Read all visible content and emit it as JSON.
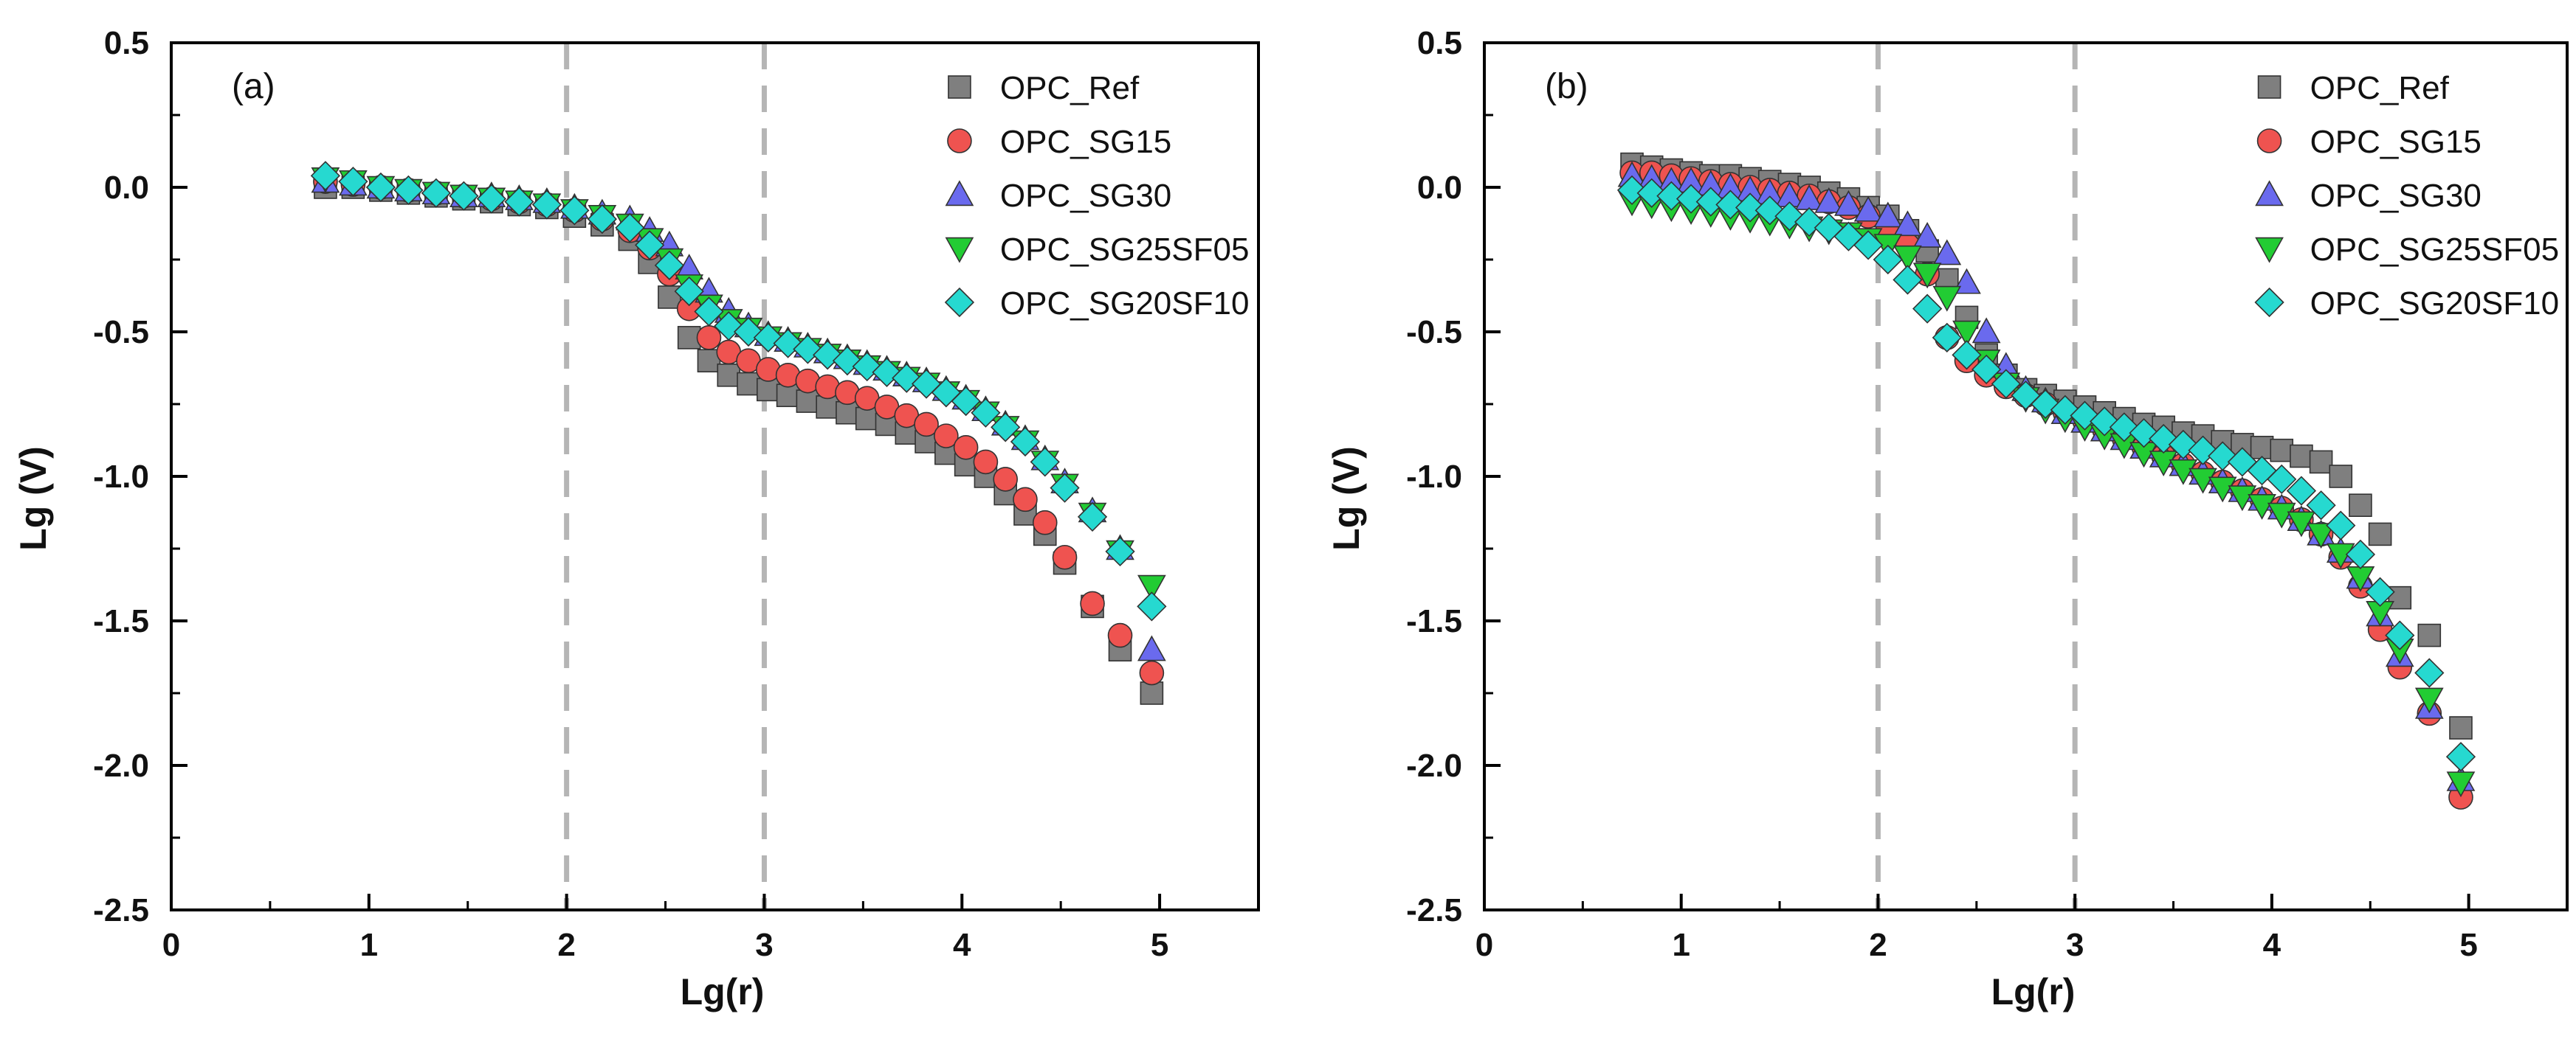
{
  "figure": {
    "panels": [
      "a",
      "b"
    ]
  },
  "chart_data": [
    {
      "type": "scatter",
      "panel_label": "(a)",
      "title": "",
      "xlabel": "Lg(r)",
      "ylabel": "Lg (V)",
      "xlim": [
        0,
        5.5
      ],
      "ylim": [
        -2.5,
        0.5
      ],
      "xticks": [
        0,
        1,
        2,
        3,
        4,
        5
      ],
      "xtick_labels": [
        "0",
        "1",
        "2",
        "3",
        "4",
        "5"
      ],
      "yticks": [
        0.5,
        0,
        -0.5,
        -1,
        -1.5,
        -2,
        -2.5
      ],
      "ytick_labels": [
        "0.5",
        "0.0",
        "-0.5",
        "-1.0",
        "-1.5",
        "-2.0",
        "-2.5"
      ],
      "vlines": [
        2,
        3
      ],
      "legend_position": "top-right",
      "series": [
        {
          "name": "OPC_Ref",
          "marker": "square",
          "color": "#7f7f7f",
          "x": [
            0.78,
            0.92,
            1.06,
            1.2,
            1.34,
            1.48,
            1.62,
            1.76,
            1.9,
            2.04,
            2.18,
            2.32,
            2.42,
            2.52,
            2.62,
            2.72,
            2.82,
            2.92,
            3.02,
            3.12,
            3.22,
            3.32,
            3.42,
            3.52,
            3.62,
            3.72,
            3.82,
            3.92,
            4.02,
            4.12,
            4.22,
            4.32,
            4.42,
            4.52,
            4.66,
            4.8,
            4.96
          ],
          "y": [
            0.0,
            0.0,
            -0.01,
            -0.02,
            -0.03,
            -0.04,
            -0.05,
            -0.06,
            -0.07,
            -0.1,
            -0.13,
            -0.18,
            -0.26,
            -0.38,
            -0.52,
            -0.6,
            -0.65,
            -0.68,
            -0.7,
            -0.72,
            -0.74,
            -0.76,
            -0.78,
            -0.8,
            -0.82,
            -0.85,
            -0.88,
            -0.92,
            -0.96,
            -1.0,
            -1.06,
            -1.13,
            -1.2,
            -1.3,
            -1.45,
            -1.6,
            -1.75
          ]
        },
        {
          "name": "OPC_SG15",
          "marker": "circle",
          "color": "#ef5350",
          "x": [
            0.78,
            0.92,
            1.06,
            1.2,
            1.34,
            1.48,
            1.62,
            1.76,
            1.9,
            2.04,
            2.18,
            2.32,
            2.42,
            2.52,
            2.62,
            2.72,
            2.82,
            2.92,
            3.02,
            3.12,
            3.22,
            3.32,
            3.42,
            3.52,
            3.62,
            3.72,
            3.82,
            3.92,
            4.02,
            4.12,
            4.22,
            4.32,
            4.42,
            4.52,
            4.66,
            4.8,
            4.96
          ],
          "y": [
            0.02,
            0.01,
            0.0,
            -0.01,
            -0.02,
            -0.03,
            -0.04,
            -0.05,
            -0.06,
            -0.08,
            -0.11,
            -0.15,
            -0.21,
            -0.3,
            -0.42,
            -0.52,
            -0.57,
            -0.6,
            -0.63,
            -0.65,
            -0.67,
            -0.69,
            -0.71,
            -0.73,
            -0.76,
            -0.79,
            -0.82,
            -0.86,
            -0.9,
            -0.95,
            -1.01,
            -1.08,
            -1.16,
            -1.28,
            -1.44,
            -1.55,
            -1.68
          ]
        },
        {
          "name": "OPC_SG30",
          "marker": "triangle-up",
          "color": "#6a6aee",
          "x": [
            0.78,
            0.92,
            1.06,
            1.2,
            1.34,
            1.48,
            1.62,
            1.76,
            1.9,
            2.04,
            2.18,
            2.32,
            2.42,
            2.52,
            2.62,
            2.72,
            2.82,
            2.92,
            3.02,
            3.12,
            3.22,
            3.32,
            3.42,
            3.52,
            3.62,
            3.72,
            3.82,
            3.92,
            4.02,
            4.12,
            4.22,
            4.32,
            4.42,
            4.52,
            4.66,
            4.8,
            4.96
          ],
          "y": [
            0.02,
            0.01,
            0.0,
            -0.01,
            -0.02,
            -0.03,
            -0.03,
            -0.04,
            -0.05,
            -0.07,
            -0.09,
            -0.11,
            -0.15,
            -0.2,
            -0.28,
            -0.36,
            -0.43,
            -0.48,
            -0.51,
            -0.53,
            -0.55,
            -0.57,
            -0.59,
            -0.61,
            -0.63,
            -0.65,
            -0.67,
            -0.7,
            -0.73,
            -0.77,
            -0.82,
            -0.87,
            -0.94,
            -1.02,
            -1.12,
            -1.25,
            -1.6
          ]
        },
        {
          "name": "OPC_SG25SF05",
          "marker": "triangle-down",
          "color": "#22cc33",
          "x": [
            0.78,
            0.92,
            1.06,
            1.2,
            1.34,
            1.48,
            1.62,
            1.76,
            1.9,
            2.04,
            2.18,
            2.32,
            2.42,
            2.52,
            2.62,
            2.72,
            2.82,
            2.92,
            3.02,
            3.12,
            3.22,
            3.32,
            3.42,
            3.52,
            3.62,
            3.72,
            3.82,
            3.92,
            4.02,
            4.12,
            4.22,
            4.32,
            4.42,
            4.52,
            4.66,
            4.8,
            4.96
          ],
          "y": [
            0.03,
            0.02,
            0.0,
            -0.01,
            -0.02,
            -0.03,
            -0.04,
            -0.05,
            -0.06,
            -0.08,
            -0.1,
            -0.13,
            -0.18,
            -0.25,
            -0.34,
            -0.41,
            -0.46,
            -0.49,
            -0.52,
            -0.54,
            -0.56,
            -0.58,
            -0.6,
            -0.62,
            -0.64,
            -0.66,
            -0.68,
            -0.71,
            -0.74,
            -0.78,
            -0.83,
            -0.88,
            -0.95,
            -1.03,
            -1.13,
            -1.26,
            -1.38
          ]
        },
        {
          "name": "OPC_SG20SF10",
          "marker": "diamond",
          "color": "#26d9d0",
          "x": [
            0.78,
            0.92,
            1.06,
            1.2,
            1.34,
            1.48,
            1.62,
            1.76,
            1.9,
            2.04,
            2.18,
            2.32,
            2.42,
            2.52,
            2.62,
            2.72,
            2.82,
            2.92,
            3.02,
            3.12,
            3.22,
            3.32,
            3.42,
            3.52,
            3.62,
            3.72,
            3.82,
            3.92,
            4.02,
            4.12,
            4.22,
            4.32,
            4.42,
            4.52,
            4.66,
            4.8,
            4.96
          ],
          "y": [
            0.04,
            0.02,
            0.0,
            -0.01,
            -0.02,
            -0.03,
            -0.04,
            -0.05,
            -0.06,
            -0.08,
            -0.11,
            -0.14,
            -0.2,
            -0.27,
            -0.36,
            -0.43,
            -0.48,
            -0.5,
            -0.52,
            -0.54,
            -0.56,
            -0.58,
            -0.6,
            -0.62,
            -0.64,
            -0.66,
            -0.68,
            -0.71,
            -0.74,
            -0.78,
            -0.83,
            -0.88,
            -0.95,
            -1.04,
            -1.14,
            -1.26,
            -1.45
          ]
        }
      ]
    },
    {
      "type": "scatter",
      "panel_label": "(b)",
      "title": "",
      "xlabel": "Lg(r)",
      "ylabel": "Lg (V)",
      "xlim": [
        0,
        5.5
      ],
      "ylim": [
        -2.5,
        0.5
      ],
      "xticks": [
        0,
        1,
        2,
        3,
        4,
        5
      ],
      "xtick_labels": [
        "0",
        "1",
        "2",
        "3",
        "4",
        "5"
      ],
      "yticks": [
        0.5,
        0,
        -0.5,
        -1,
        -1.5,
        -2,
        -2.5
      ],
      "ytick_labels": [
        "0.5",
        "0.0",
        "-0.5",
        "-1.0",
        "-1.5",
        "-2.0",
        "-2.5"
      ],
      "vlines": [
        2,
        3
      ],
      "legend_position": "top-right",
      "series": [
        {
          "name": "OPC_Ref",
          "marker": "square",
          "color": "#7f7f7f",
          "x": [
            0.75,
            0.85,
            0.95,
            1.05,
            1.15,
            1.25,
            1.35,
            1.45,
            1.55,
            1.65,
            1.75,
            1.85,
            1.95,
            2.05,
            2.15,
            2.25,
            2.35,
            2.45,
            2.55,
            2.65,
            2.75,
            2.85,
            2.95,
            3.05,
            3.15,
            3.25,
            3.35,
            3.45,
            3.55,
            3.65,
            3.75,
            3.85,
            3.95,
            4.05,
            4.15,
            4.25,
            4.35,
            4.45,
            4.55,
            4.65,
            4.8,
            4.96
          ],
          "y": [
            0.08,
            0.07,
            0.06,
            0.05,
            0.04,
            0.04,
            0.03,
            0.02,
            0.01,
            0.0,
            -0.02,
            -0.04,
            -0.07,
            -0.1,
            -0.15,
            -0.22,
            -0.32,
            -0.45,
            -0.58,
            -0.65,
            -0.7,
            -0.72,
            -0.74,
            -0.76,
            -0.78,
            -0.8,
            -0.82,
            -0.83,
            -0.85,
            -0.86,
            -0.88,
            -0.89,
            -0.9,
            -0.91,
            -0.93,
            -0.95,
            -1.0,
            -1.1,
            -1.2,
            -1.42,
            -1.55,
            -1.87
          ]
        },
        {
          "name": "OPC_SG15",
          "marker": "circle",
          "color": "#ef5350",
          "x": [
            0.75,
            0.85,
            0.95,
            1.05,
            1.15,
            1.25,
            1.35,
            1.45,
            1.55,
            1.65,
            1.75,
            1.85,
            1.95,
            2.05,
            2.15,
            2.25,
            2.35,
            2.45,
            2.55,
            2.65,
            2.75,
            2.85,
            2.95,
            3.05,
            3.15,
            3.25,
            3.35,
            3.45,
            3.55,
            3.65,
            3.75,
            3.85,
            3.95,
            4.05,
            4.15,
            4.25,
            4.35,
            4.45,
            4.55,
            4.65,
            4.8,
            4.96
          ],
          "y": [
            0.05,
            0.05,
            0.04,
            0.03,
            0.02,
            0.01,
            0.0,
            -0.01,
            -0.02,
            -0.03,
            -0.05,
            -0.07,
            -0.1,
            -0.14,
            -0.2,
            -0.3,
            -0.52,
            -0.6,
            -0.65,
            -0.69,
            -0.72,
            -0.75,
            -0.78,
            -0.81,
            -0.84,
            -0.87,
            -0.9,
            -0.93,
            -0.96,
            -0.99,
            -1.02,
            -1.05,
            -1.08,
            -1.11,
            -1.15,
            -1.2,
            -1.28,
            -1.38,
            -1.53,
            -1.66,
            -1.82,
            -2.11
          ]
        },
        {
          "name": "OPC_SG30",
          "marker": "triangle-up",
          "color": "#6a6aee",
          "x": [
            0.75,
            0.85,
            0.95,
            1.05,
            1.15,
            1.25,
            1.35,
            1.45,
            1.55,
            1.65,
            1.75,
            1.85,
            1.95,
            2.05,
            2.15,
            2.25,
            2.35,
            2.45,
            2.55,
            2.65,
            2.75,
            2.85,
            2.95,
            3.05,
            3.15,
            3.25,
            3.35,
            3.45,
            3.55,
            3.65,
            3.75,
            3.85,
            3.95,
            4.05,
            4.15,
            4.25,
            4.35,
            4.45,
            4.55,
            4.65,
            4.8,
            4.96
          ],
          "y": [
            0.04,
            0.03,
            0.02,
            0.02,
            0.01,
            0.0,
            -0.01,
            -0.02,
            -0.03,
            -0.04,
            -0.05,
            -0.06,
            -0.08,
            -0.1,
            -0.13,
            -0.17,
            -0.23,
            -0.33,
            -0.5,
            -0.62,
            -0.7,
            -0.74,
            -0.78,
            -0.81,
            -0.84,
            -0.87,
            -0.9,
            -0.93,
            -0.96,
            -0.99,
            -1.02,
            -1.05,
            -1.08,
            -1.11,
            -1.15,
            -1.2,
            -1.26,
            -1.35,
            -1.48,
            -1.62,
            -1.8,
            -2.05
          ]
        },
        {
          "name": "OPC_SG25SF05",
          "marker": "triangle-down",
          "color": "#22cc33",
          "x": [
            0.75,
            0.85,
            0.95,
            1.05,
            1.15,
            1.25,
            1.35,
            1.45,
            1.55,
            1.65,
            1.75,
            1.85,
            1.95,
            2.05,
            2.15,
            2.25,
            2.35,
            2.45,
            2.55,
            2.65,
            2.75,
            2.85,
            2.95,
            3.05,
            3.15,
            3.25,
            3.35,
            3.45,
            3.55,
            3.65,
            3.75,
            3.85,
            3.95,
            4.05,
            4.15,
            4.25,
            4.35,
            4.45,
            4.55,
            4.65,
            4.8,
            4.96
          ],
          "y": [
            -0.05,
            -0.06,
            -0.07,
            -0.08,
            -0.09,
            -0.1,
            -0.11,
            -0.12,
            -0.13,
            -0.14,
            -0.15,
            -0.16,
            -0.18,
            -0.2,
            -0.24,
            -0.3,
            -0.38,
            -0.5,
            -0.6,
            -0.68,
            -0.73,
            -0.77,
            -0.8,
            -0.83,
            -0.86,
            -0.89,
            -0.92,
            -0.95,
            -0.98,
            -1.01,
            -1.04,
            -1.07,
            -1.1,
            -1.13,
            -1.16,
            -1.2,
            -1.27,
            -1.35,
            -1.47,
            -1.6,
            -1.77,
            -2.06
          ]
        },
        {
          "name": "OPC_SG20SF10",
          "marker": "diamond",
          "color": "#26d9d0",
          "x": [
            0.75,
            0.85,
            0.95,
            1.05,
            1.15,
            1.25,
            1.35,
            1.45,
            1.55,
            1.65,
            1.75,
            1.85,
            1.95,
            2.05,
            2.15,
            2.25,
            2.35,
            2.45,
            2.55,
            2.65,
            2.75,
            2.85,
            2.95,
            3.05,
            3.15,
            3.25,
            3.35,
            3.45,
            3.55,
            3.65,
            3.75,
            3.85,
            3.95,
            4.05,
            4.15,
            4.25,
            4.35,
            4.45,
            4.55,
            4.65,
            4.8,
            4.96
          ],
          "y": [
            -0.01,
            -0.02,
            -0.03,
            -0.04,
            -0.05,
            -0.06,
            -0.07,
            -0.08,
            -0.1,
            -0.12,
            -0.14,
            -0.17,
            -0.2,
            -0.25,
            -0.32,
            -0.42,
            -0.52,
            -0.58,
            -0.63,
            -0.68,
            -0.72,
            -0.75,
            -0.77,
            -0.79,
            -0.81,
            -0.83,
            -0.85,
            -0.87,
            -0.89,
            -0.91,
            -0.93,
            -0.95,
            -0.98,
            -1.01,
            -1.05,
            -1.1,
            -1.17,
            -1.27,
            -1.4,
            -1.55,
            -1.68,
            -1.97
          ]
        }
      ]
    }
  ]
}
